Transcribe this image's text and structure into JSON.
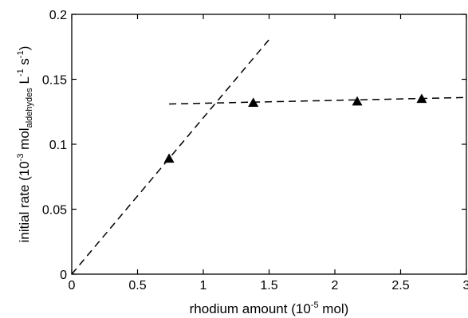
{
  "chart_data": {
    "type": "scatter",
    "title": "",
    "xlabel": {
      "main": "rhodium amount (10",
      "sup": "-5",
      "tail": " mol)"
    },
    "ylabel": {
      "p1": "initial rate (10",
      "sup1": "-3",
      "p2": " mol",
      "sub1": "aldehydes",
      "p3": " L",
      "sup2": "-1",
      "p4": " s",
      "sup3": "-1",
      "p5": ")"
    },
    "xlim": [
      0,
      3
    ],
    "ylim": [
      0,
      0.2
    ],
    "xticks": [
      0,
      0.5,
      1,
      1.5,
      2,
      2.5,
      3
    ],
    "xtick_labels": [
      "0",
      "0.5",
      "1",
      "1.5",
      "2",
      "2.5",
      "3"
    ],
    "yticks": [
      0,
      0.05,
      0.1,
      0.15,
      0.2
    ],
    "ytick_labels": [
      "0",
      "0.05",
      "0.1",
      "0.15",
      "0.2"
    ],
    "points": [
      {
        "x": 0.74,
        "y": 0.089
      },
      {
        "x": 1.38,
        "y": 0.132
      },
      {
        "x": 2.17,
        "y": 0.133
      },
      {
        "x": 2.66,
        "y": 0.135
      }
    ],
    "fit_lines": [
      {
        "x": [
          0,
          1.52
        ],
        "y": [
          0,
          0.183
        ]
      },
      {
        "x": [
          0.74,
          3
        ],
        "y": [
          0.131,
          0.136
        ]
      }
    ],
    "marker": "triangle",
    "line_style": "dashed",
    "color": "#000000",
    "grid": false
  }
}
